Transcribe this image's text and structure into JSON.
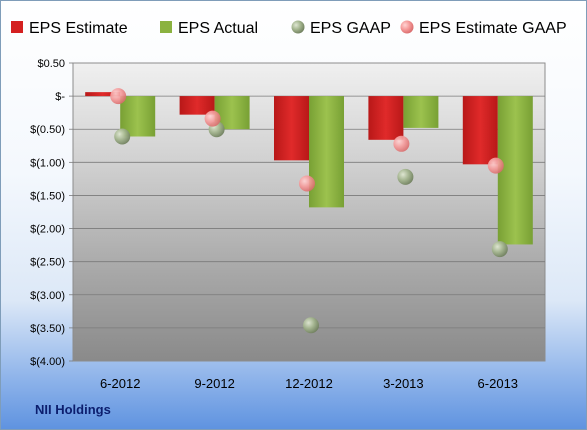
{
  "footer": {
    "company": "NII Holdings"
  },
  "colors": {
    "estimate": "#d42020",
    "actual": "#8bb240",
    "gaap": "#9eae8c",
    "estimate_gaap": "#f28a8a"
  },
  "chart_data": {
    "type": "bar",
    "categories": [
      "6-2012",
      "9-2012",
      "12-2012",
      "3-2013",
      "6-2013"
    ],
    "ylim": [
      -4.0,
      0.5
    ],
    "yticks": [
      0.5,
      0,
      -0.5,
      -1.0,
      -1.5,
      -2.0,
      -2.5,
      -3.0,
      -3.5,
      -4.0
    ],
    "ytick_labels": [
      "$0.50",
      "$-",
      "$(0.50)",
      "$(1.00)",
      "$(1.50)",
      "$(2.00)",
      "$(2.50)",
      "$(3.00)",
      "$(3.50)",
      "$(4.00)"
    ],
    "legend_position": "top",
    "series": [
      {
        "name": "EPS Estimate",
        "kind": "bar",
        "color": "#d42020",
        "values": [
          0.06,
          -0.28,
          -0.97,
          -0.66,
          -1.03
        ]
      },
      {
        "name": "EPS Actual",
        "kind": "bar",
        "color": "#8bb240",
        "values": [
          -0.61,
          -0.5,
          -1.68,
          -0.48,
          -2.24
        ]
      },
      {
        "name": "EPS GAAP",
        "kind": "marker",
        "color": "#9eae8c",
        "values": [
          -0.61,
          -0.5,
          -3.46,
          -1.22,
          -2.31
        ]
      },
      {
        "name": "EPS Estimate GAAP",
        "kind": "marker",
        "color": "#f28a8a",
        "values": [
          0.0,
          -0.34,
          -1.32,
          -0.72,
          -1.05
        ]
      }
    ]
  }
}
